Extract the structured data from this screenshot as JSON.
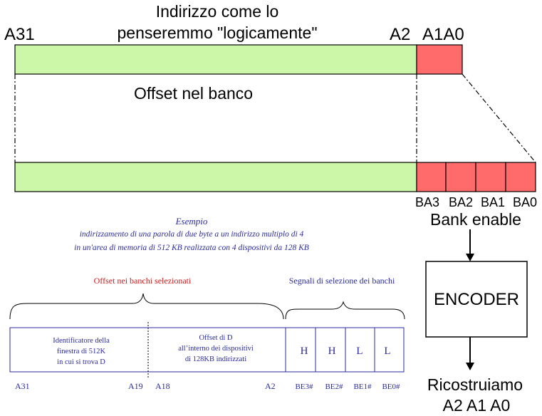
{
  "colors": {
    "green": "#ccf7a8",
    "red": "#ff6b6b",
    "blue": "#2a2aa0",
    "darkred": "#d01818",
    "black": "#000000"
  },
  "top": {
    "title_line1": "Indirizzo come lo",
    "title_line2": "penseremmo \"logicamente\"",
    "label_a31": "A31",
    "label_a2": "A2",
    "label_a1a0": "A1A0",
    "offset_label": "Offset nel banco"
  },
  "banks": {
    "labels": [
      "BA3",
      "BA2",
      "BA1",
      "BA0"
    ],
    "bank_enable": "Bank enable",
    "encoder": "ENCODER",
    "result_line1": "Ricostruiamo",
    "result_line2": "A2 A1 A0"
  },
  "example": {
    "title": "Esempio",
    "line1": "indirizzamento di una parola di due byte a un indirizzo multiplo di 4",
    "line2": "in un'area di memoria di 512 KB realizzata con 4 dispositivi da 128 KB",
    "brace_left_label": "Offset nei banchi selezionati",
    "brace_right_label": "Segnali di selezione dei banchi",
    "cell1_line1": "Identificatore della",
    "cell1_line2": "finestra di 512K",
    "cell1_line3": "in cui si trova D",
    "cell2_line1": "Offset di D",
    "cell2_line2": "all’interno dei dispositivi",
    "cell2_line3": "di 128KB indirizzati",
    "signals": [
      "H",
      "H",
      "L",
      "L"
    ],
    "bottom_labels": [
      "A31",
      "A19",
      "A18",
      "A2",
      "BE3#",
      "BE2#",
      "BE1#",
      "BE0#"
    ]
  }
}
